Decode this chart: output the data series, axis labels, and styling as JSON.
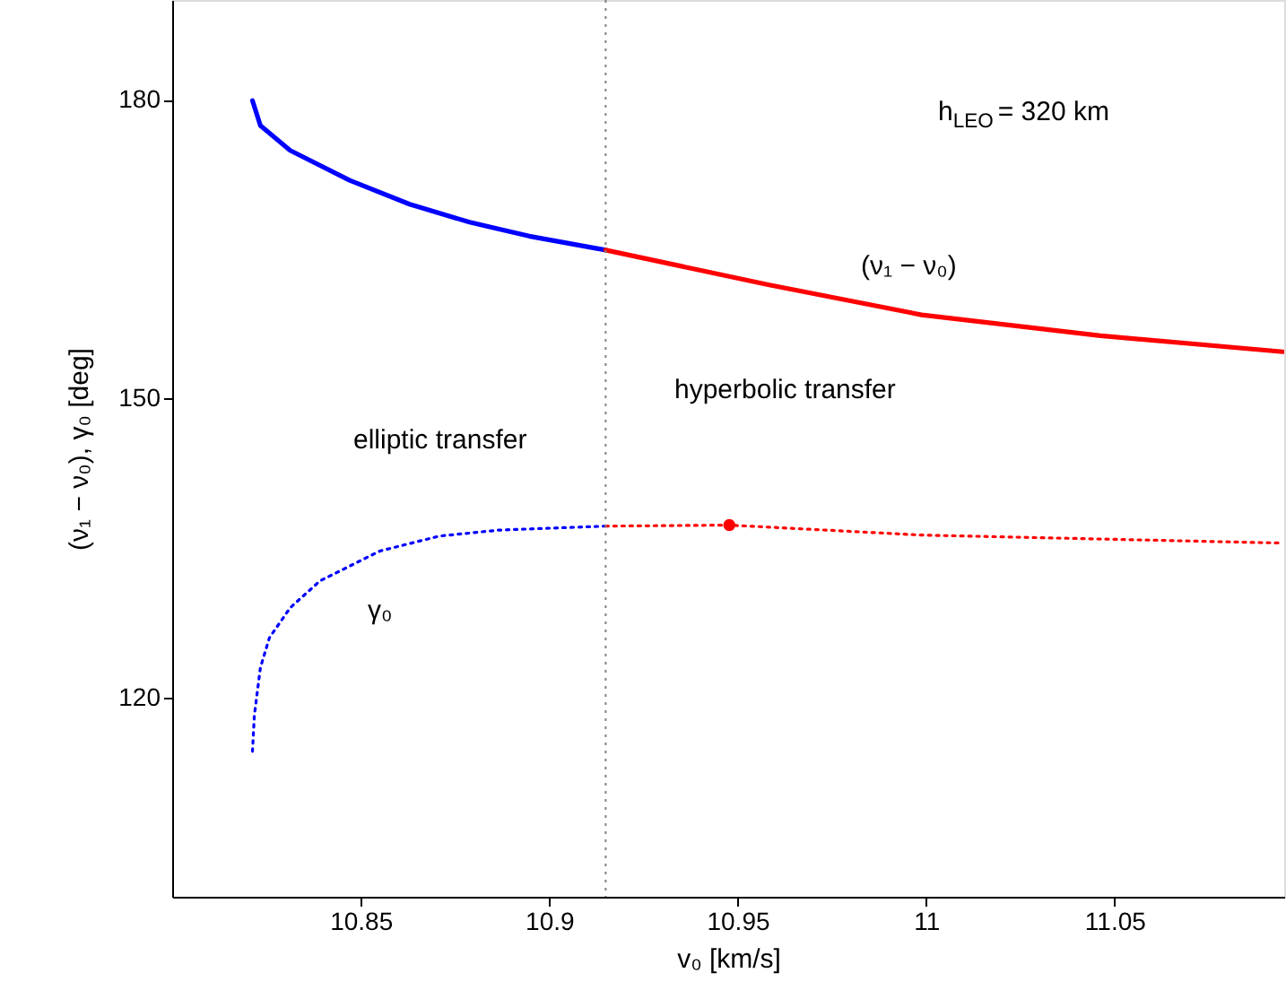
{
  "chart_data": {
    "type": "line",
    "xlabel": "v₀ [km/s]",
    "ylabel": "(ν₁ − ν₀), γ₀ [deg]",
    "xlim": [
      10.8,
      11.095
    ],
    "xticks": [
      10.85,
      10.9,
      10.95,
      11,
      11.05
    ],
    "ylim": [
      100,
      190
    ],
    "yticks": [
      120,
      150,
      180
    ],
    "series": [
      {
        "color": "#0000ff",
        "line_style": "solid",
        "x": [
          10.8213,
          10.8234,
          10.8313,
          10.8471,
          10.863,
          10.8789,
          10.8947,
          10.915
        ],
        "values": [
          179.9,
          177.4,
          174.9,
          171.9,
          169.5,
          167.7,
          166.3,
          164.9
        ]
      },
      {
        "color": "#ff0000",
        "line_style": "solid",
        "x": [
          10.915,
          10.9584,
          10.9988,
          11.0463,
          11.0946
        ],
        "values": [
          164.9,
          161.4,
          158.4,
          156.3,
          154.7
        ]
      },
      {
        "color": "#0000ff",
        "line_style": "dotted",
        "x": [
          10.8213,
          10.8218,
          10.8234,
          10.8258,
          10.8313,
          10.8392,
          10.8551,
          10.8709,
          10.8867,
          10.915
        ],
        "values": [
          114.6,
          118.2,
          123.0,
          126.0,
          129.0,
          131.7,
          134.7,
          136.2,
          136.8,
          137.2
        ]
      },
      {
        "color": "#ff0000",
        "line_style": "dotted",
        "x": [
          10.915,
          10.9478,
          10.9988,
          11.0946
        ],
        "values": [
          137.2,
          137.3,
          136.3,
          135.5
        ]
      },
      {
        "type": "scatter",
        "color": "#ff0000",
        "marker": "circle",
        "x": [
          10.9478
        ],
        "values": [
          137.3
        ]
      }
    ],
    "ref_lines": [
      {
        "axis": "x",
        "value": 10.915,
        "label": null,
        "color": "#808080",
        "line_style": "dotted"
      }
    ],
    "annotations": [
      "h$_{LEO}$ = 320 km",
      "(ν₁ − ν₀)",
      "γ₀",
      "elliptic transfer",
      "hyperbolic transfer"
    ]
  }
}
